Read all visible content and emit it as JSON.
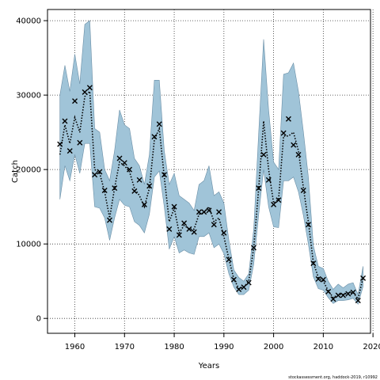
{
  "chart_data": {
    "type": "line",
    "xlabel": "Years",
    "ylabel": "Catch",
    "xlim": [
      1954.5,
      2019.5
    ],
    "ylim": [
      -2000,
      41500
    ],
    "x_ticks": [
      1960,
      1970,
      1980,
      1990,
      2000,
      2010,
      2020
    ],
    "y_ticks": [
      0,
      10000,
      20000,
      30000,
      40000
    ],
    "grid": true,
    "legend": "none",
    "credit": "stockassessment.org, haddock-2019, r10992",
    "band_color": "#a0c4d8",
    "band_edge_color": "#6a8ea6",
    "series": [
      {
        "kind": "observed",
        "marker": "x",
        "color": "#000000",
        "x": [
          1957,
          1958,
          1959,
          1960,
          1961,
          1962,
          1963,
          1964,
          1965,
          1966,
          1967,
          1968,
          1969,
          1970,
          1971,
          1972,
          1973,
          1974,
          1975,
          1976,
          1977,
          1978,
          1979,
          1980,
          1981,
          1982,
          1983,
          1984,
          1985,
          1986,
          1987,
          1988,
          1989,
          1990,
          1991,
          1992,
          1993,
          1994,
          1995,
          1996,
          1997,
          1998,
          1999,
          2000,
          2001,
          2002,
          2003,
          2004,
          2005,
          2006,
          2007,
          2008,
          2009,
          2010,
          2011,
          2012,
          2013,
          2014,
          2015,
          2016,
          2017,
          2018
        ],
        "y": [
          23400,
          26500,
          22500,
          29200,
          23600,
          30400,
          31000,
          19300,
          19700,
          17200,
          13200,
          17500,
          21500,
          20900,
          20000,
          17100,
          18600,
          15300,
          17800,
          24400,
          26100,
          19300,
          12000,
          15000,
          11200,
          12800,
          12000,
          11600,
          14300,
          14300,
          14500,
          12600,
          14300,
          11500,
          7900,
          5200,
          3900,
          4200,
          4800,
          9500,
          17500,
          22000,
          18600,
          15300,
          15900,
          24900,
          26800,
          23300,
          22000,
          17200,
          12600,
          7400,
          5300,
          5200,
          3600,
          2600,
          3100,
          3100,
          3300,
          3500,
          2400,
          5400
        ]
      },
      {
        "kind": "estimated",
        "style": "dotted",
        "color": "#000000",
        "x": [
          1957,
          1958,
          1959,
          1960,
          1961,
          1962,
          1963,
          1964,
          1965,
          1966,
          1967,
          1968,
          1969,
          1970,
          1971,
          1972,
          1973,
          1974,
          1975,
          1976,
          1977,
          1978,
          1979,
          1980,
          1981,
          1982,
          1983,
          1984,
          1985,
          1986,
          1987,
          1988,
          1989,
          1990,
          1991,
          1992,
          1993,
          1994,
          1995,
          1996,
          1997,
          1998,
          1999,
          2000,
          2001,
          2002,
          2003,
          2004,
          2005,
          2006,
          2007,
          2008,
          2009,
          2010,
          2011,
          2012,
          2013,
          2014,
          2015,
          2016,
          2017,
          2018
        ],
        "y": [
          22000,
          26000,
          23500,
          27000,
          25000,
          29800,
          30500,
          20000,
          19500,
          17000,
          13500,
          17500,
          21000,
          20500,
          19700,
          17500,
          16500,
          15000,
          17500,
          24000,
          25500,
          19000,
          13000,
          14800,
          11500,
          12500,
          12000,
          12000,
          14000,
          14200,
          15000,
          13000,
          13500,
          11000,
          8000,
          5300,
          4000,
          4200,
          5000,
          9500,
          17500,
          26500,
          20000,
          15500,
          16000,
          24500,
          24500,
          25000,
          22500,
          17500,
          13000,
          7500,
          5500,
          5000,
          3700,
          2800,
          3200,
          3200,
          3400,
          3500,
          2600,
          5500
        ]
      }
    ],
    "confidence_band": {
      "x": [
        1957,
        1958,
        1959,
        1960,
        1961,
        1962,
        1963,
        1964,
        1965,
        1966,
        1967,
        1968,
        1969,
        1970,
        1971,
        1972,
        1973,
        1974,
        1975,
        1976,
        1977,
        1978,
        1979,
        1980,
        1981,
        1982,
        1983,
        1984,
        1985,
        1986,
        1987,
        1988,
        1989,
        1990,
        1991,
        1992,
        1993,
        1994,
        1995,
        1996,
        1997,
        1998,
        1999,
        2000,
        2001,
        2002,
        2003,
        2004,
        2005,
        2006,
        2007,
        2008,
        2009,
        2010,
        2011,
        2012,
        2013,
        2014,
        2015,
        2016,
        2017,
        2018
      ],
      "upper": [
        30000,
        34000,
        30500,
        35500,
        31500,
        39500,
        40000,
        25500,
        25000,
        20000,
        18500,
        22500,
        28000,
        26000,
        25500,
        21500,
        20500,
        18000,
        22000,
        32000,
        32000,
        22500,
        18000,
        19500,
        16500,
        16000,
        15500,
        14500,
        18000,
        18500,
        20500,
        16500,
        17000,
        15500,
        10500,
        6500,
        5500,
        5000,
        6000,
        12000,
        25000,
        37500,
        28000,
        21000,
        20000,
        32800,
        33000,
        34300,
        30500,
        25000,
        19000,
        9800,
        7000,
        6700,
        5000,
        3900,
        4600,
        4100,
        4600,
        4800,
        3200,
        7000
      ],
      "lower": [
        16000,
        20500,
        18500,
        22000,
        19500,
        23500,
        23500,
        15000,
        14800,
        13500,
        10500,
        13500,
        16000,
        15200,
        15000,
        13000,
        12500,
        11500,
        14000,
        19000,
        19800,
        15000,
        9300,
        11000,
        8800,
        9200,
        8800,
        8600,
        11000,
        11000,
        11500,
        9500,
        10000,
        8700,
        6000,
        4200,
        3200,
        3200,
        3800,
        7300,
        14000,
        20000,
        15000,
        12300,
        12200,
        18500,
        18500,
        19000,
        17000,
        13800,
        10000,
        5600,
        4000,
        3800,
        2800,
        2000,
        2400,
        2400,
        2500,
        2700,
        1900,
        4300
      ]
    }
  }
}
